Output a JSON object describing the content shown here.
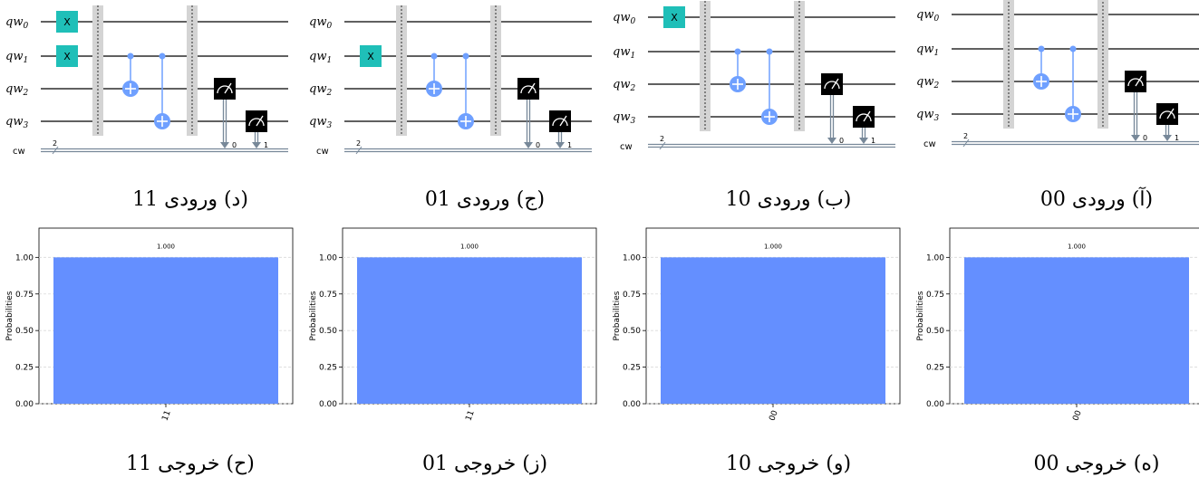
{
  "panels": [
    {
      "caption": "(د) ورودی 11",
      "x_gates": [
        0,
        1
      ],
      "hist_caption": "(ح) خروجی 11",
      "chart_data": {
        "type": "bar",
        "categories": [
          "11"
        ],
        "values": [
          1.0
        ],
        "value_labels": [
          "1.000"
        ],
        "ylabel": "Probabilities",
        "yticks": [
          "0.00",
          "0.25",
          "0.50",
          "0.75",
          "1.00"
        ],
        "ylim": [
          0,
          1.2
        ]
      }
    },
    {
      "caption": "(ج) ورودی 01",
      "x_gates": [
        1
      ],
      "hist_caption": "(ز) خروجی 01",
      "chart_data": {
        "type": "bar",
        "categories": [
          "11"
        ],
        "values": [
          1.0
        ],
        "value_labels": [
          "1.000"
        ],
        "ylabel": "Probabilities",
        "yticks": [
          "0.00",
          "0.25",
          "0.50",
          "0.75",
          "1.00"
        ],
        "ylim": [
          0,
          1.2
        ]
      }
    },
    {
      "caption": "(ب) ورودی 10",
      "x_gates": [
        0
      ],
      "hist_caption": "(و) خروجی 10",
      "chart_data": {
        "type": "bar",
        "categories": [
          "00"
        ],
        "values": [
          1.0
        ],
        "value_labels": [
          "1.000"
        ],
        "ylabel": "Probabilities",
        "yticks": [
          "0.00",
          "0.25",
          "0.50",
          "0.75",
          "1.00"
        ],
        "ylim": [
          0,
          1.2
        ]
      }
    },
    {
      "caption": "(آ) ورودی 00",
      "x_gates": [],
      "hist_caption": "(ه) خروجی 00",
      "chart_data": {
        "type": "bar",
        "categories": [
          "00"
        ],
        "values": [
          1.0
        ],
        "value_labels": [
          "1.000"
        ],
        "ylabel": "Probabilities",
        "yticks": [
          "0.00",
          "0.25",
          "0.50",
          "0.75",
          "1.00"
        ],
        "ylim": [
          0,
          1.2
        ]
      }
    }
  ],
  "circuit": {
    "qubit_prefix": "qw",
    "qubit_indices": [
      "0",
      "1",
      "2",
      "3"
    ],
    "classical_label": "cw",
    "classical_bits": "2",
    "x_label": "X",
    "measure_bits": [
      "0",
      "1"
    ]
  },
  "colors": {
    "x_gate": "#1fbfb8",
    "cnot": "#6fa0ff",
    "bar": "#648fff",
    "measure": "#000000",
    "classical": "#778899"
  }
}
